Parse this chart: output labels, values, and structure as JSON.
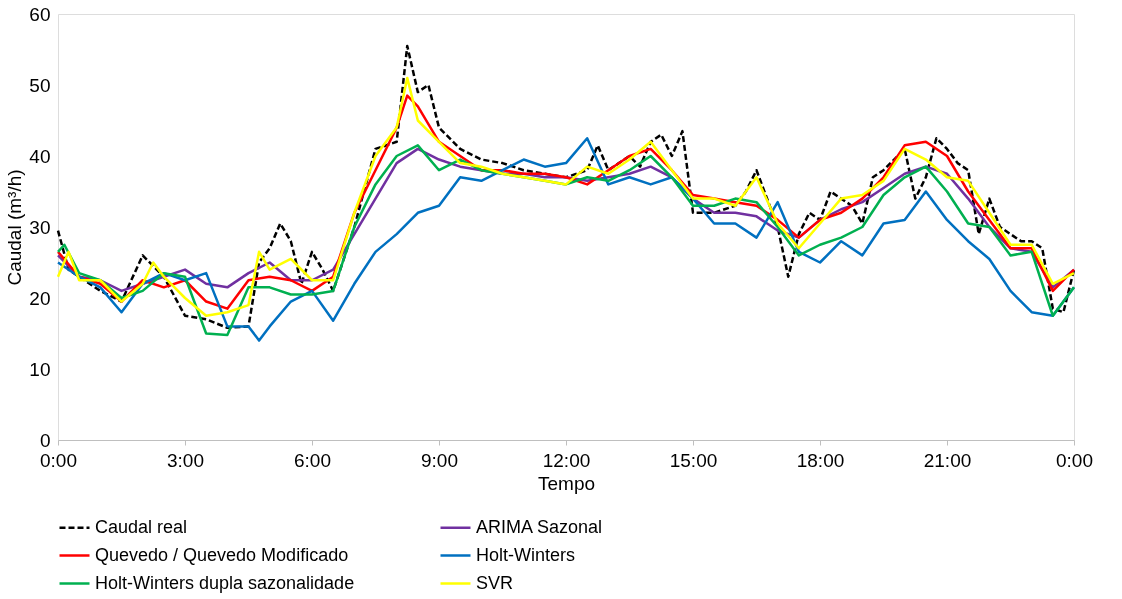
{
  "chart_data": {
    "type": "line",
    "xlabel": "Tempo",
    "ylabel": "Caudal (m³/h)",
    "xlim": [
      0,
      24
    ],
    "xticks": [
      {
        "value": 0,
        "label": "0:00"
      },
      {
        "value": 3,
        "label": "3:00"
      },
      {
        "value": 6,
        "label": "6:00"
      },
      {
        "value": 9,
        "label": "9:00"
      },
      {
        "value": 12,
        "label": "12:00"
      },
      {
        "value": 15,
        "label": "15:00"
      },
      {
        "value": 18,
        "label": "18:00"
      },
      {
        "value": 21,
        "label": "21:00"
      },
      {
        "value": 24,
        "label": "0:00"
      }
    ],
    "ylim": [
      0,
      60
    ],
    "yticks": [
      0,
      10,
      20,
      30,
      40,
      50,
      60
    ],
    "grid": false,
    "legend": "bottom",
    "marker": "none",
    "series": [
      {
        "name": "Caudal real",
        "color": "#000000",
        "line_style": "dashed",
        "x": [
          0,
          0.25,
          0.5,
          1,
          1.5,
          2,
          2.5,
          3,
          3.5,
          4,
          4.5,
          4.75,
          5,
          5.25,
          5.5,
          5.75,
          6,
          6.25,
          6.5,
          7,
          7.5,
          8,
          8.25,
          8.5,
          8.75,
          9,
          9.5,
          10,
          10.5,
          11,
          11.5,
          12,
          12.5,
          12.75,
          13,
          13.5,
          13.75,
          14,
          14.25,
          14.5,
          14.75,
          15,
          15.5,
          16,
          16.25,
          16.5,
          17,
          17.25,
          17.5,
          17.75,
          18,
          18.25,
          18.5,
          18.75,
          19,
          19.25,
          19.5,
          19.75,
          20,
          20.25,
          20.5,
          20.75,
          21,
          21.25,
          21.5,
          21.75,
          22,
          22.25,
          22.5,
          22.75,
          23,
          23.25,
          23.5,
          23.75,
          24
        ],
        "values": [
          29.5,
          24,
          23,
          21,
          19.5,
          26,
          23,
          17.5,
          17,
          15.8,
          16,
          25,
          27,
          30.5,
          28,
          22,
          26.5,
          24,
          21,
          30,
          41,
          42,
          55.5,
          49,
          50,
          44,
          41,
          39.5,
          39,
          38,
          37.5,
          37,
          38,
          41.5,
          38,
          40,
          38.5,
          42,
          43,
          40,
          43.5,
          32,
          32,
          33,
          35,
          38,
          30,
          23,
          29,
          32,
          31,
          35,
          34,
          33,
          30.5,
          37,
          38,
          39.5,
          41,
          34,
          37,
          42.5,
          41,
          39,
          38,
          29,
          34,
          30,
          29,
          28,
          28,
          27,
          18.5,
          18,
          24
        ]
      },
      {
        "name": "ARIMA Sazonal",
        "color": "#7030a0",
        "line_style": "solid",
        "x": [
          0,
          0.5,
          1,
          1.5,
          2,
          2.5,
          3,
          3.5,
          4,
          4.5,
          5,
          5.5,
          6,
          6.5,
          7,
          7.5,
          8,
          8.5,
          9,
          9.5,
          10,
          10.5,
          11,
          11.5,
          12,
          12.5,
          13,
          13.5,
          14,
          14.5,
          15,
          15.5,
          16,
          16.5,
          17,
          17.5,
          18,
          18.5,
          19,
          19.5,
          20,
          20.5,
          21,
          21.5,
          22,
          22.5,
          23,
          23.5,
          24
        ],
        "values": [
          26,
          23,
          22.5,
          21,
          22,
          23,
          24,
          22,
          21.5,
          23.5,
          25,
          22.5,
          22.5,
          24,
          29,
          34,
          39,
          41,
          39.5,
          38.5,
          38,
          37.5,
          37.5,
          37,
          37,
          36.5,
          37,
          37.5,
          38.5,
          37,
          34,
          32,
          32,
          31.5,
          29.5,
          28.5,
          31,
          32.5,
          33.5,
          35.5,
          37.5,
          38.5,
          37.5,
          34,
          30,
          27,
          26.5,
          21.5,
          24
        ]
      },
      {
        "name": "Quevedo / Quevedo Modificado",
        "color": "#ff0000",
        "line_style": "solid",
        "x": [
          0,
          0.5,
          1,
          1.5,
          2,
          2.5,
          3,
          3.5,
          4,
          4.5,
          5,
          5.5,
          6,
          6.5,
          7,
          7.5,
          8,
          8.25,
          8.5,
          9,
          9.5,
          10,
          10.5,
          11,
          11.5,
          12,
          12.5,
          13,
          13.5,
          14,
          14.5,
          15,
          15.5,
          16,
          16.5,
          17,
          17.5,
          18,
          18.5,
          19,
          19.5,
          20,
          20.5,
          21,
          21.5,
          22,
          22.5,
          23,
          23.5,
          24
        ],
        "values": [
          26.5,
          23,
          22,
          19.5,
          22.5,
          21.5,
          22.5,
          19.5,
          18.5,
          22.5,
          23,
          22.5,
          21,
          23,
          32,
          38,
          44,
          48.5,
          47,
          42,
          40,
          38,
          38,
          37.5,
          37.5,
          37,
          36,
          38,
          40,
          41,
          38,
          34.5,
          34,
          33.5,
          33,
          31,
          28.5,
          31,
          32,
          34,
          37,
          41.5,
          42,
          40,
          35,
          31,
          27,
          27,
          21,
          24
        ]
      },
      {
        "name": "Holt-Winters",
        "color": "#0070c0",
        "line_style": "solid",
        "x": [
          0,
          0.5,
          1,
          1.5,
          2,
          2.5,
          3,
          3.5,
          4,
          4.5,
          4.75,
          5,
          5.5,
          6,
          6.5,
          7,
          7.5,
          8,
          8.5,
          9,
          9.5,
          10,
          10.5,
          11,
          11.5,
          12,
          12.5,
          13,
          13.5,
          14,
          14.5,
          15,
          15.5,
          16,
          16.5,
          17,
          17.5,
          18,
          18.5,
          19,
          19.5,
          20,
          20.5,
          21,
          21.5,
          22,
          22.5,
          23,
          23.5,
          24
        ],
        "values": [
          25,
          23,
          21.5,
          18,
          22,
          23.5,
          22.5,
          23.5,
          16,
          16,
          14,
          16,
          19.5,
          21,
          16.8,
          22,
          26.5,
          29,
          32,
          33,
          37,
          36.5,
          38,
          39.5,
          38.5,
          39,
          42.5,
          36,
          37,
          36,
          37,
          34,
          30.5,
          30.5,
          28.5,
          33.5,
          26.5,
          25,
          28,
          26,
          30.5,
          31,
          35,
          31,
          28,
          25.5,
          21,
          18,
          17.5,
          21.5
        ]
      },
      {
        "name": "Holt-Winters dupla sazonalidade",
        "color": "#00b050",
        "line_style": "solid",
        "x": [
          0,
          0.15,
          0.5,
          1,
          1.5,
          2,
          2.5,
          3,
          3.5,
          4,
          4.5,
          5,
          5.5,
          6,
          6.5,
          7,
          7.5,
          8,
          8.5,
          9,
          9.5,
          10,
          10.5,
          11,
          11.5,
          12,
          12.5,
          13,
          13.5,
          14,
          14.5,
          15,
          15.5,
          16,
          16.5,
          17,
          17.5,
          18,
          18.5,
          19,
          19.5,
          20,
          20.5,
          21,
          21.5,
          22,
          22.5,
          23,
          23.5,
          24
        ],
        "values": [
          26.5,
          27.5,
          23.5,
          22.5,
          20,
          21,
          23.5,
          23,
          15,
          14.8,
          21.5,
          21.5,
          20.5,
          20.5,
          21,
          30,
          36,
          40,
          41.5,
          38,
          39.5,
          38,
          37.5,
          37,
          36.5,
          36,
          37,
          36.5,
          38,
          40,
          37,
          33,
          33,
          34,
          33.5,
          30,
          26,
          27.5,
          28.5,
          30,
          34.5,
          37,
          38.5,
          35,
          30.5,
          30,
          26,
          26.5,
          17.5,
          21.5
        ]
      },
      {
        "name": "SVR",
        "color": "#ffff00",
        "line_style": "solid",
        "x": [
          0,
          0.25,
          0.5,
          1,
          1.5,
          2,
          2.25,
          2.5,
          3,
          3.5,
          4,
          4.5,
          4.75,
          5,
          5.5,
          6,
          6.5,
          7,
          7.5,
          8,
          8.25,
          8.5,
          9,
          9.5,
          10,
          10.5,
          11,
          11.5,
          12,
          12.5,
          13,
          13.5,
          14,
          14.5,
          15,
          15.5,
          16,
          16.5,
          17,
          17.5,
          18,
          18.5,
          19,
          19.5,
          20,
          20.5,
          21,
          21.5,
          22,
          22.5,
          23,
          23.5,
          24
        ],
        "values": [
          23,
          26.5,
          22.5,
          22.5,
          19.5,
          22,
          25,
          23,
          20,
          17.5,
          18,
          19,
          26.5,
          24,
          25.5,
          22.5,
          22.5,
          32,
          40,
          44,
          51,
          45,
          42,
          39,
          38.5,
          37.5,
          37,
          36.5,
          36,
          38.5,
          37.5,
          39.5,
          42,
          38,
          34,
          34,
          33,
          37,
          30.5,
          27,
          30.5,
          34,
          34.5,
          36.5,
          41,
          39.5,
          37,
          36.5,
          32,
          27.5,
          27.5,
          22,
          23.5
        ]
      }
    ]
  }
}
